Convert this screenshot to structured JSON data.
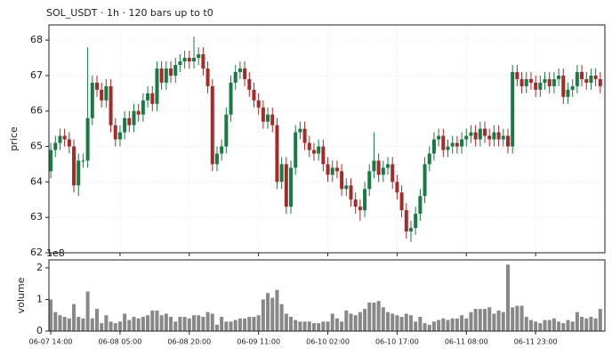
{
  "chart_data": [
    {
      "type": "candlestick",
      "title": "SOL_USDT  ·  1h  ·  120 bars up to t0",
      "y_label": "price",
      "xlim": [
        -0.4,
        120
      ],
      "xticks": [
        0,
        15,
        30,
        45,
        60,
        75,
        90,
        105
      ],
      "ylim": [
        62,
        68.43
      ],
      "yticks": [
        62,
        63,
        64,
        65,
        66,
        67,
        68
      ],
      "grid": true,
      "up_color": "#1a7a45",
      "down_color": "#a52a2a",
      "open": [
        64.3,
        64.9,
        65.1,
        65.3,
        65.2,
        65.0,
        63.9,
        64.6,
        64.6,
        65.8,
        66.8,
        66.6,
        66.3,
        66.7,
        65.6,
        65.2,
        65.4,
        65.8,
        65.6,
        66.0,
        65.9,
        66.3,
        66.5,
        66.2,
        67.2,
        66.8,
        67.2,
        67.0,
        67.3,
        67.4,
        67.5,
        67.4,
        67.5,
        67.6,
        67.2,
        66.7,
        64.5,
        64.8,
        65.0,
        65.9,
        66.8,
        67.1,
        67.2,
        66.9,
        66.6,
        66.3,
        66.1,
        65.7,
        65.9,
        65.6,
        64.0,
        64.5,
        63.3,
        64.4,
        65.4,
        65.5,
        65.1,
        64.9,
        64.8,
        65.0,
        64.5,
        64.2,
        64.4,
        64.3,
        63.8,
        63.9,
        63.5,
        63.3,
        63.2,
        63.8,
        64.3,
        64.6,
        64.2,
        64.4,
        64.5,
        64.0,
        63.7,
        63.2,
        62.6,
        62.7,
        63.1,
        63.6,
        64.5,
        64.8,
        65.2,
        65.3,
        64.9,
        65.0,
        65.1,
        65.0,
        65.2,
        65.3,
        65.4,
        65.2,
        65.5,
        65.3,
        65.2,
        65.4,
        65.2,
        65.3,
        65.0,
        67.1,
        66.9,
        66.7,
        66.9,
        66.8,
        66.6,
        66.8,
        66.9,
        66.7,
        66.9,
        67.0,
        66.4,
        66.6,
        66.7,
        67.1,
        66.9,
        66.8,
        67.0,
        66.9
      ],
      "high": [
        65.1,
        65.3,
        65.5,
        65.5,
        65.4,
        65.2,
        64.8,
        64.8,
        67.8,
        67.0,
        67.0,
        66.8,
        66.9,
        66.9,
        65.8,
        65.6,
        66.0,
        66.0,
        66.2,
        66.2,
        66.5,
        66.7,
        66.7,
        67.4,
        67.4,
        67.4,
        67.4,
        67.5,
        67.6,
        67.7,
        67.7,
        68.1,
        67.8,
        67.8,
        67.4,
        66.9,
        65.0,
        65.2,
        66.1,
        67.0,
        67.3,
        67.4,
        67.4,
        67.1,
        66.8,
        66.5,
        66.3,
        66.1,
        66.1,
        65.8,
        64.7,
        64.7,
        64.6,
        65.6,
        65.7,
        65.7,
        65.3,
        65.1,
        65.2,
        65.2,
        64.7,
        64.6,
        64.6,
        64.5,
        64.1,
        64.1,
        63.7,
        63.5,
        64.0,
        64.5,
        65.4,
        64.8,
        64.6,
        64.7,
        64.7,
        64.2,
        63.9,
        63.4,
        62.9,
        63.3,
        63.8,
        64.7,
        65.0,
        65.4,
        65.5,
        65.5,
        65.2,
        65.3,
        65.3,
        65.4,
        65.5,
        65.6,
        65.6,
        65.7,
        65.7,
        65.5,
        65.6,
        65.6,
        65.5,
        65.5,
        67.3,
        67.3,
        67.1,
        67.1,
        67.1,
        67.0,
        67.0,
        67.1,
        67.1,
        67.1,
        67.2,
        67.2,
        66.8,
        66.9,
        67.3,
        67.3,
        67.1,
        67.2,
        67.2,
        67.1
      ],
      "low": [
        64.1,
        64.7,
        64.9,
        65.0,
        64.8,
        63.7,
        63.6,
        64.4,
        64.4,
        65.6,
        66.4,
        66.1,
        66.1,
        65.4,
        65.0,
        65.0,
        65.2,
        65.4,
        65.4,
        65.7,
        65.7,
        66.1,
        66.0,
        66.0,
        66.6,
        66.6,
        66.8,
        66.8,
        67.1,
        67.2,
        67.2,
        67.2,
        67.3,
        67.0,
        66.5,
        64.3,
        64.3,
        64.6,
        64.8,
        65.7,
        66.6,
        66.9,
        66.7,
        66.4,
        66.1,
        65.9,
        65.5,
        65.5,
        65.4,
        63.8,
        63.8,
        63.1,
        63.1,
        64.2,
        65.2,
        64.9,
        64.7,
        64.6,
        64.6,
        64.3,
        64.0,
        64.0,
        64.1,
        63.6,
        63.6,
        63.3,
        63.1,
        62.9,
        63.0,
        63.6,
        64.1,
        64.0,
        64.0,
        64.2,
        63.8,
        63.5,
        63.0,
        62.4,
        62.3,
        62.5,
        62.9,
        63.4,
        64.3,
        64.6,
        65.0,
        64.7,
        64.7,
        64.8,
        64.8,
        64.8,
        65.0,
        65.1,
        65.0,
        65.0,
        65.1,
        65.0,
        65.0,
        65.0,
        65.0,
        64.8,
        64.8,
        66.7,
        66.5,
        66.5,
        66.6,
        66.4,
        66.4,
        66.6,
        66.5,
        66.5,
        66.7,
        66.2,
        66.2,
        66.4,
        66.5,
        66.7,
        66.6,
        66.6,
        66.7,
        66.5
      ],
      "close": [
        64.9,
        65.1,
        65.3,
        65.2,
        65.0,
        63.9,
        64.6,
        64.6,
        65.8,
        66.8,
        66.6,
        66.3,
        66.7,
        65.6,
        65.2,
        65.4,
        65.8,
        65.6,
        66.0,
        65.9,
        66.3,
        66.5,
        66.2,
        67.2,
        66.8,
        67.2,
        67.0,
        67.3,
        67.4,
        67.5,
        67.4,
        67.5,
        67.6,
        67.2,
        66.7,
        64.5,
        64.8,
        65.0,
        65.9,
        66.8,
        67.1,
        67.2,
        66.9,
        66.6,
        66.3,
        66.1,
        65.7,
        65.9,
        65.6,
        64.0,
        64.5,
        63.3,
        64.4,
        65.4,
        65.5,
        65.1,
        64.9,
        64.8,
        65.0,
        64.5,
        64.2,
        64.4,
        64.3,
        63.8,
        63.9,
        63.5,
        63.3,
        63.2,
        63.8,
        64.3,
        64.6,
        64.2,
        64.4,
        64.5,
        64.0,
        63.7,
        63.2,
        62.6,
        62.7,
        63.1,
        63.6,
        64.5,
        64.8,
        65.2,
        65.3,
        64.9,
        65.0,
        65.1,
        65.0,
        65.2,
        65.3,
        65.4,
        65.2,
        65.5,
        65.3,
        65.2,
        65.4,
        65.2,
        65.3,
        65.0,
        67.1,
        66.9,
        66.7,
        66.9,
        66.8,
        66.6,
        66.8,
        66.9,
        66.7,
        66.9,
        67.0,
        66.4,
        66.6,
        66.7,
        67.1,
        66.9,
        66.8,
        67.0,
        66.9,
        66.7
      ]
    },
    {
      "type": "bar",
      "y_label": "volume",
      "y_offset": "1e8",
      "color": "#888888",
      "xlim": [
        -0.4,
        120
      ],
      "xticks": [
        {
          "value": 0,
          "label": "06-07 14:00"
        },
        {
          "value": 15,
          "label": "06-08 05:00"
        },
        {
          "value": 30,
          "label": "06-08 20:00"
        },
        {
          "value": 45,
          "label": "06-09 11:00"
        },
        {
          "value": 60,
          "label": "06-10 02:00"
        },
        {
          "value": 75,
          "label": "06-10 17:00"
        },
        {
          "value": 90,
          "label": "06-11 08:00"
        },
        {
          "value": 105,
          "label": "06-11 23:00"
        }
      ],
      "ylim": [
        0,
        2.25
      ],
      "yticks": [
        0,
        1,
        2
      ],
      "values": [
        1.0,
        0.6,
        0.5,
        0.45,
        0.4,
        0.85,
        0.45,
        0.4,
        1.25,
        0.4,
        0.7,
        0.25,
        0.5,
        0.3,
        0.25,
        0.3,
        0.55,
        0.35,
        0.45,
        0.4,
        0.45,
        0.5,
        0.65,
        0.65,
        0.5,
        0.55,
        0.45,
        0.3,
        0.45,
        0.45,
        0.4,
        0.5,
        0.5,
        0.45,
        0.6,
        0.55,
        0.2,
        0.45,
        0.3,
        0.3,
        0.35,
        0.4,
        0.4,
        0.45,
        0.45,
        0.5,
        1.0,
        1.2,
        1.05,
        1.3,
        0.85,
        0.55,
        0.45,
        0.35,
        0.3,
        0.3,
        0.3,
        0.25,
        0.25,
        0.3,
        0.3,
        0.55,
        0.4,
        0.3,
        0.65,
        0.55,
        0.5,
        0.6,
        0.7,
        0.9,
        0.9,
        0.95,
        0.75,
        0.6,
        0.55,
        0.5,
        0.45,
        0.55,
        0.5,
        0.3,
        0.45,
        0.25,
        0.2,
        0.3,
        0.35,
        0.4,
        0.35,
        0.4,
        0.4,
        0.5,
        0.4,
        0.6,
        0.7,
        0.7,
        0.7,
        0.75,
        0.55,
        0.65,
        0.6,
        2.1,
        0.75,
        0.8,
        0.8,
        0.45,
        0.35,
        0.3,
        0.25,
        0.35,
        0.35,
        0.4,
        0.3,
        0.25,
        0.35,
        0.3,
        0.6,
        0.45,
        0.4,
        0.45,
        0.4,
        0.7
      ]
    }
  ]
}
